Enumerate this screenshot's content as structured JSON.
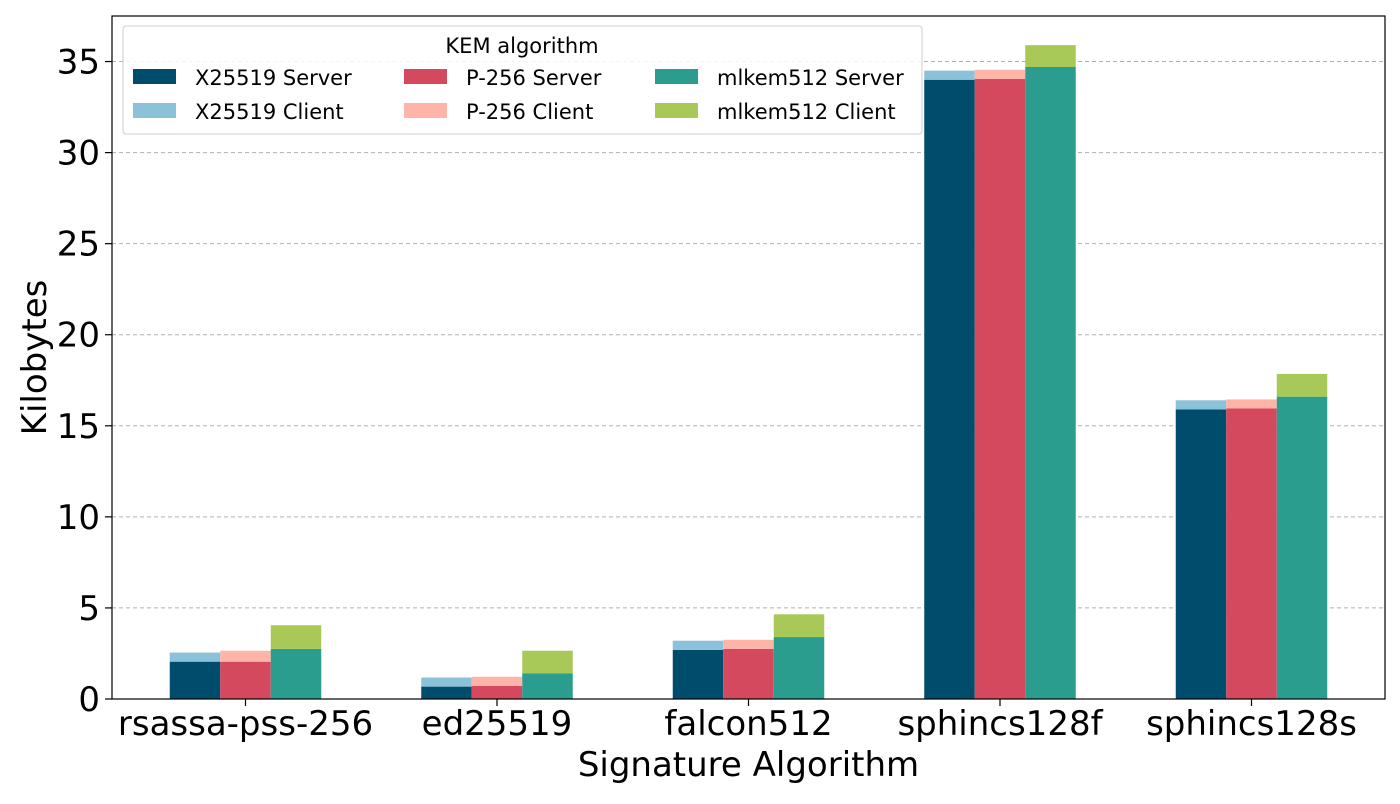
{
  "chart_data": {
    "type": "bar",
    "stacked": true,
    "grouped": true,
    "title": "",
    "xlabel": "Signature Algorithm",
    "ylabel": "Kilobytes",
    "ylim": [
      0,
      37.5
    ],
    "yticks": [
      0,
      5,
      10,
      15,
      20,
      25,
      30,
      35
    ],
    "grid": "y-dashed",
    "legend_title": "KEM algorithm",
    "legend_position": "top-left",
    "categories": [
      "rsassa-pss-256",
      "ed25519",
      "falcon512",
      "sphincs128f",
      "sphincs128s"
    ],
    "groups": [
      {
        "kem": "X25519",
        "server_label": "X25519 Server",
        "client_label": "X25519 Client",
        "server_color": "#004c6d",
        "client_color": "#8bc2d9",
        "server": [
          2.05,
          0.68,
          2.7,
          34.0,
          15.9
        ],
        "client": [
          0.5,
          0.5,
          0.5,
          0.5,
          0.5
        ]
      },
      {
        "kem": "P-256",
        "server_label": "P-256 Server",
        "client_label": "P-256 Client",
        "server_color": "#d4495e",
        "client_color": "#ffb4a8",
        "server": [
          2.05,
          0.72,
          2.75,
          34.05,
          15.95
        ],
        "client": [
          0.6,
          0.5,
          0.5,
          0.5,
          0.5
        ]
      },
      {
        "kem": "mlkem512",
        "server_label": "mlkem512 Server",
        "client_label": "mlkem512 Client",
        "server_color": "#2a9d8f",
        "client_color": "#a8c957",
        "server": [
          2.75,
          1.4,
          3.4,
          34.7,
          16.6
        ],
        "client": [
          1.3,
          1.25,
          1.25,
          1.2,
          1.25
        ]
      }
    ]
  }
}
